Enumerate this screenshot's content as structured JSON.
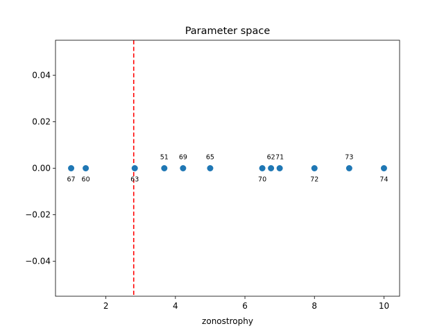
{
  "chart_data": {
    "type": "scatter",
    "title": "Parameter space",
    "xlabel": "zonostrophy",
    "ylabel": "",
    "xlim": [
      0.55,
      10.45
    ],
    "ylim": [
      -0.055,
      0.055
    ],
    "xticks": [
      2,
      4,
      6,
      8,
      10
    ],
    "yticks": [
      0.04,
      0.02,
      0.0,
      -0.02,
      -0.04
    ],
    "xtick_labels": [
      "2",
      "4",
      "6",
      "8",
      "10"
    ],
    "ytick_labels": [
      "0.04",
      "0.02",
      "0.00",
      "−0.02",
      "−0.04"
    ],
    "grid": false,
    "point_color": "#1f77b4",
    "vline": {
      "x": 2.8,
      "color": "#ff0000",
      "style": "dashed"
    },
    "points": [
      {
        "x": 1.0,
        "y": 0.0,
        "label": "67",
        "label_pos": "below"
      },
      {
        "x": 1.42,
        "y": 0.0,
        "label": "60",
        "label_pos": "below"
      },
      {
        "x": 2.83,
        "y": 0.0,
        "label": "63",
        "label_pos": "below"
      },
      {
        "x": 3.68,
        "y": 0.0,
        "label": "51",
        "label_pos": "above"
      },
      {
        "x": 4.22,
        "y": 0.0,
        "label": "69",
        "label_pos": "above"
      },
      {
        "x": 5.0,
        "y": 0.0,
        "label": "65",
        "label_pos": "above"
      },
      {
        "x": 6.5,
        "y": 0.0,
        "label": "70",
        "label_pos": "below"
      },
      {
        "x": 6.75,
        "y": 0.0,
        "label": "62",
        "label_pos": "above"
      },
      {
        "x": 7.0,
        "y": 0.0,
        "label": "71",
        "label_pos": "above"
      },
      {
        "x": 8.0,
        "y": 0.0,
        "label": "72",
        "label_pos": "below"
      },
      {
        "x": 9.0,
        "y": 0.0,
        "label": "73",
        "label_pos": "above"
      },
      {
        "x": 10.0,
        "y": 0.0,
        "label": "74",
        "label_pos": "below"
      }
    ]
  }
}
